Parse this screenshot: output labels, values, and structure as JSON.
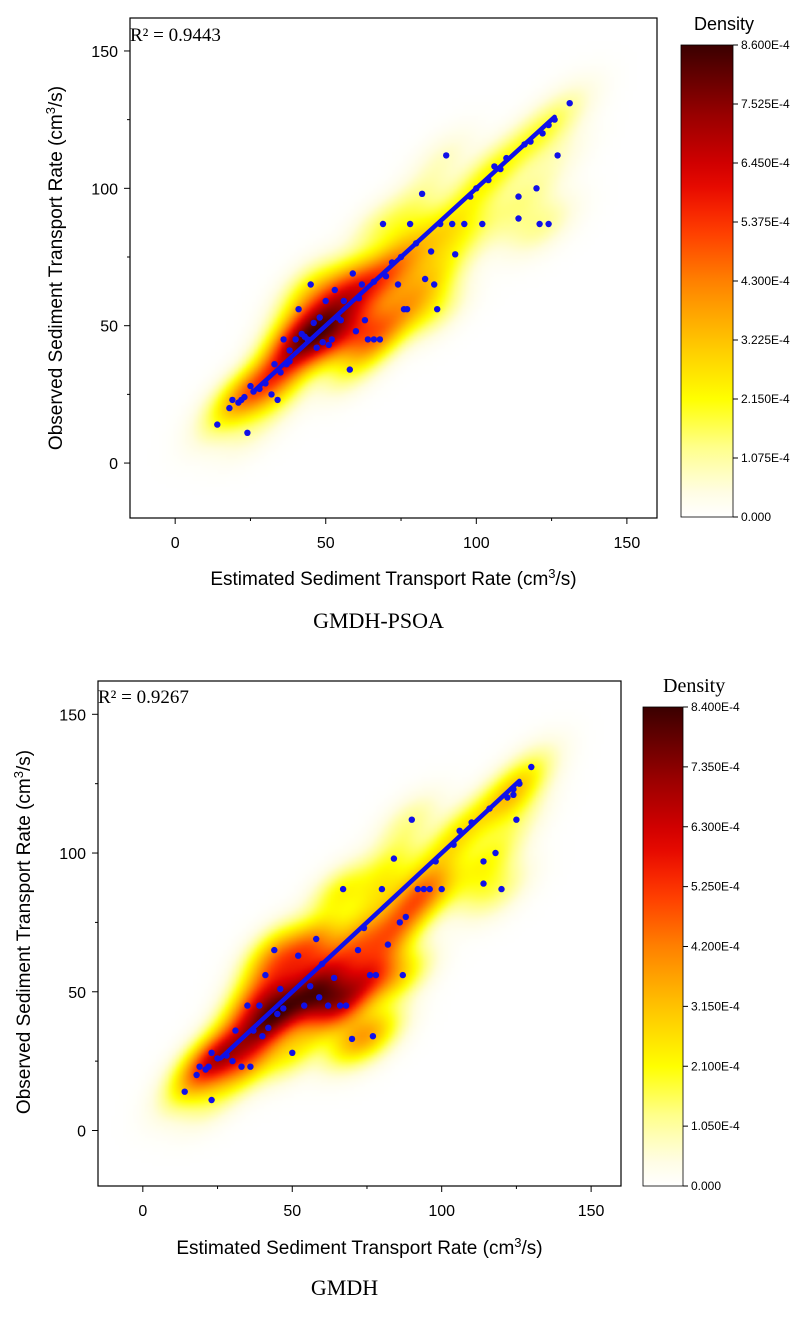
{
  "chart_data": [
    {
      "type": "scatter",
      "subtype": "scatter with kernel density heatmap",
      "title": "GMDH-PSOA",
      "annotation": "R² = 0.9443",
      "xlabel": "Estimated Sediment Transport Rate (cm",
      "xlabel_sup": "3",
      "xlabel_tail": "/s)",
      "ylabel": "Observed Sediment Transport Rate (cm",
      "ylabel_sup": "3",
      "ylabel_tail": "/s)",
      "xlim": [
        -15,
        160
      ],
      "ylim": [
        -20,
        162
      ],
      "xticks": [
        0,
        50,
        100,
        150
      ],
      "yticks": [
        0,
        50,
        100,
        150
      ],
      "grid": false,
      "colorbar": {
        "title": "Density",
        "min": 0,
        "max": 0.00086,
        "tick_labels": [
          "0.000",
          "1.075E-4",
          "2.150E-4",
          "3.225E-4",
          "4.300E-4",
          "5.375E-4",
          "6.450E-4",
          "7.525E-4",
          "8.600E-4"
        ]
      },
      "point_color": "#1010e8",
      "points": [
        [
          14,
          14
        ],
        [
          18,
          20
        ],
        [
          19,
          23
        ],
        [
          21,
          22
        ],
        [
          22,
          23
        ],
        [
          23,
          24
        ],
        [
          24,
          11
        ],
        [
          25,
          28
        ],
        [
          26,
          26
        ],
        [
          28,
          27
        ],
        [
          30,
          29
        ],
        [
          32,
          25
        ],
        [
          33,
          36
        ],
        [
          34,
          23
        ],
        [
          35,
          33
        ],
        [
          36,
          45
        ],
        [
          37,
          36
        ],
        [
          38,
          41
        ],
        [
          38,
          37
        ],
        [
          40,
          45
        ],
        [
          41,
          56
        ],
        [
          42,
          47
        ],
        [
          43,
          46
        ],
        [
          44,
          45
        ],
        [
          45,
          65
        ],
        [
          46,
          51
        ],
        [
          47,
          42
        ],
        [
          48,
          53
        ],
        [
          49,
          44
        ],
        [
          50,
          59
        ],
        [
          51,
          43
        ],
        [
          52,
          45
        ],
        [
          53,
          63
        ],
        [
          54,
          53
        ],
        [
          55,
          52
        ],
        [
          56,
          59
        ],
        [
          58,
          34
        ],
        [
          59,
          69
        ],
        [
          60,
          48
        ],
        [
          61,
          60
        ],
        [
          62,
          65
        ],
        [
          63,
          52
        ],
        [
          64,
          45
        ],
        [
          66,
          66
        ],
        [
          66,
          45
        ],
        [
          68,
          45
        ],
        [
          69,
          87
        ],
        [
          70,
          68
        ],
        [
          72,
          73
        ],
        [
          74,
          65
        ],
        [
          75,
          75
        ],
        [
          76,
          56
        ],
        [
          77,
          56
        ],
        [
          78,
          87
        ],
        [
          80,
          80
        ],
        [
          82,
          98
        ],
        [
          83,
          67
        ],
        [
          85,
          77
        ],
        [
          86,
          65
        ],
        [
          87,
          56
        ],
        [
          88,
          87
        ],
        [
          90,
          112
        ],
        [
          92,
          87
        ],
        [
          93,
          76
        ],
        [
          96,
          87
        ],
        [
          98,
          97
        ],
        [
          100,
          100
        ],
        [
          102,
          87
        ],
        [
          104,
          103
        ],
        [
          106,
          108
        ],
        [
          108,
          107
        ],
        [
          110,
          111
        ],
        [
          114,
          89
        ],
        [
          114,
          97
        ],
        [
          116,
          116
        ],
        [
          118,
          117
        ],
        [
          120,
          100
        ],
        [
          121,
          87
        ],
        [
          122,
          120
        ],
        [
          124,
          87
        ],
        [
          124,
          123
        ],
        [
          126,
          125
        ],
        [
          127,
          112
        ],
        [
          131,
          131
        ]
      ],
      "diag_from": 26,
      "diag_to": 126
    },
    {
      "type": "scatter",
      "subtype": "scatter with kernel density heatmap",
      "title": "GMDH",
      "annotation": "R² = 0.9267",
      "xlabel": "Estimated Sediment Transport Rate (cm",
      "xlabel_sup": "3",
      "xlabel_tail": "/s)",
      "ylabel": "Observed Sediment Transport Rate (cm",
      "ylabel_sup": "3",
      "ylabel_tail": "/s)",
      "xlim": [
        -15,
        160
      ],
      "ylim": [
        -20,
        162
      ],
      "xticks": [
        0,
        50,
        100,
        150
      ],
      "yticks": [
        0,
        50,
        100,
        150
      ],
      "grid": false,
      "colorbar": {
        "title": "Density",
        "min": 0,
        "max": 0.00084,
        "tick_labels": [
          "0.000",
          "1.050E-4",
          "2.100E-4",
          "3.150E-4",
          "4.200E-4",
          "5.250E-4",
          "6.300E-4",
          "7.350E-4",
          "8.400E-4"
        ]
      },
      "point_color": "#1010e8",
      "points": [
        [
          14,
          14
        ],
        [
          18,
          20
        ],
        [
          19,
          23
        ],
        [
          21,
          22
        ],
        [
          22,
          23
        ],
        [
          23,
          28
        ],
        [
          23,
          11
        ],
        [
          25,
          26
        ],
        [
          28,
          27
        ],
        [
          30,
          25
        ],
        [
          31,
          36
        ],
        [
          33,
          23
        ],
        [
          35,
          45
        ],
        [
          36,
          23
        ],
        [
          37,
          36
        ],
        [
          39,
          45
        ],
        [
          40,
          34
        ],
        [
          41,
          56
        ],
        [
          42,
          37
        ],
        [
          44,
          65
        ],
        [
          45,
          42
        ],
        [
          46,
          51
        ],
        [
          47,
          44
        ],
        [
          50,
          28
        ],
        [
          52,
          63
        ],
        [
          54,
          45
        ],
        [
          56,
          52
        ],
        [
          58,
          69
        ],
        [
          59,
          48
        ],
        [
          60,
          60
        ],
        [
          62,
          45
        ],
        [
          64,
          55
        ],
        [
          66,
          45
        ],
        [
          67,
          87
        ],
        [
          68,
          45
        ],
        [
          70,
          33
        ],
        [
          72,
          65
        ],
        [
          74,
          73
        ],
        [
          76,
          56
        ],
        [
          77,
          34
        ],
        [
          78,
          56
        ],
        [
          80,
          87
        ],
        [
          82,
          67
        ],
        [
          84,
          98
        ],
        [
          86,
          75
        ],
        [
          87,
          56
        ],
        [
          88,
          77
        ],
        [
          90,
          112
        ],
        [
          92,
          87
        ],
        [
          94,
          87
        ],
        [
          96,
          87
        ],
        [
          98,
          97
        ],
        [
          100,
          87
        ],
        [
          104,
          103
        ],
        [
          106,
          108
        ],
        [
          110,
          111
        ],
        [
          114,
          89
        ],
        [
          114,
          97
        ],
        [
          116,
          116
        ],
        [
          118,
          100
        ],
        [
          120,
          87
        ],
        [
          122,
          120
        ],
        [
          124,
          121
        ],
        [
          124,
          123
        ],
        [
          125,
          112
        ],
        [
          126,
          125
        ],
        [
          130,
          131
        ]
      ],
      "diag_from": 26,
      "diag_to": 126
    }
  ]
}
